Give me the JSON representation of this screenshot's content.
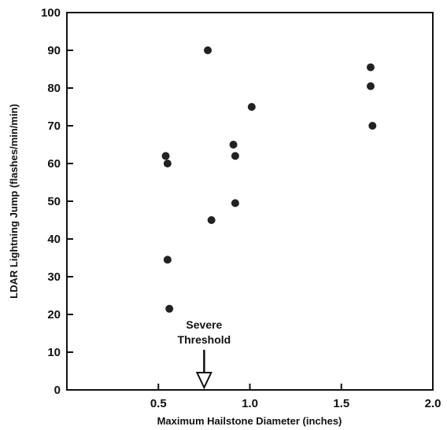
{
  "chart_data": {
    "type": "scatter",
    "title": "",
    "xlabel": "Maximum Hailstone Diameter (inches)",
    "ylabel": "LDAR Lightning Jump (flashes/min/min)",
    "xlim": [
      0,
      2.0
    ],
    "ylim": [
      0,
      100
    ],
    "x_ticks": [
      0.5,
      1.0,
      1.5,
      2.0
    ],
    "x_tick_labels": [
      "0.5",
      "1.0",
      "1.5",
      "2.0"
    ],
    "y_ticks": [
      0,
      10,
      20,
      30,
      40,
      50,
      60,
      70,
      80,
      90,
      100
    ],
    "y_tick_labels": [
      "0",
      "10",
      "20",
      "30",
      "40",
      "50",
      "60",
      "70",
      "80",
      "90",
      "100"
    ],
    "grid": false,
    "legend": "none",
    "marker_color": "#222222",
    "points": [
      {
        "x": 0.54,
        "y": 62
      },
      {
        "x": 0.55,
        "y": 60
      },
      {
        "x": 0.55,
        "y": 34.5
      },
      {
        "x": 0.56,
        "y": 21.5
      },
      {
        "x": 0.77,
        "y": 90
      },
      {
        "x": 0.79,
        "y": 45
      },
      {
        "x": 0.91,
        "y": 65
      },
      {
        "x": 0.92,
        "y": 62
      },
      {
        "x": 0.92,
        "y": 49.5
      },
      {
        "x": 1.01,
        "y": 75
      },
      {
        "x": 1.66,
        "y": 85.5
      },
      {
        "x": 1.66,
        "y": 80.5
      },
      {
        "x": 1.67,
        "y": 70
      }
    ],
    "annotation": {
      "lines": [
        "Severe",
        "Threshold"
      ],
      "x": 0.75
    }
  }
}
